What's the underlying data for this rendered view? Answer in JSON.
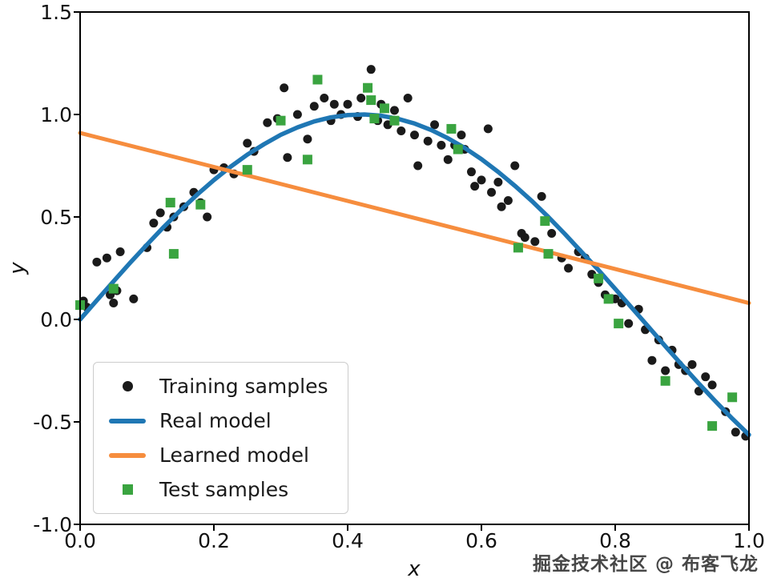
{
  "watermark": "掘金技术社区 @ 布客飞龙",
  "chart_data": {
    "type": "scatter",
    "title": "",
    "xlabel": "x",
    "ylabel": "y",
    "xlim": [
      0.0,
      1.0
    ],
    "ylim": [
      -1.0,
      1.5
    ],
    "grid": false,
    "legend_position": "lower left",
    "xticks": [
      0.0,
      0.2,
      0.4,
      0.6,
      0.8,
      1.0
    ],
    "xtick_labels": [
      "0.0",
      "0.2",
      "0.4",
      "0.6",
      "0.8",
      "1.0"
    ],
    "yticks": [
      -1.0,
      -0.5,
      0.0,
      0.5,
      1.0,
      1.5
    ],
    "ytick_labels": [
      "-1.0",
      "-0.5",
      "0.0",
      "0.5",
      "1.0",
      "1.5"
    ],
    "series": [
      {
        "name": "Training samples",
        "type": "scatter",
        "marker": "circle",
        "color": "#1a1a1a",
        "points": [
          [
            0.005,
            0.09
          ],
          [
            0.01,
            0.06
          ],
          [
            0.025,
            0.28
          ],
          [
            0.04,
            0.3
          ],
          [
            0.045,
            0.12
          ],
          [
            0.05,
            0.08
          ],
          [
            0.055,
            0.14
          ],
          [
            0.06,
            0.33
          ],
          [
            0.08,
            0.1
          ],
          [
            0.1,
            0.35
          ],
          [
            0.11,
            0.47
          ],
          [
            0.12,
            0.52
          ],
          [
            0.13,
            0.45
          ],
          [
            0.14,
            0.5
          ],
          [
            0.155,
            0.55
          ],
          [
            0.17,
            0.62
          ],
          [
            0.18,
            0.57
          ],
          [
            0.19,
            0.5
          ],
          [
            0.2,
            0.73
          ],
          [
            0.215,
            0.74
          ],
          [
            0.23,
            0.71
          ],
          [
            0.25,
            0.86
          ],
          [
            0.26,
            0.82
          ],
          [
            0.28,
            0.96
          ],
          [
            0.295,
            0.98
          ],
          [
            0.305,
            1.13
          ],
          [
            0.31,
            0.79
          ],
          [
            0.325,
            1.0
          ],
          [
            0.34,
            0.88
          ],
          [
            0.35,
            1.04
          ],
          [
            0.365,
            1.08
          ],
          [
            0.375,
            0.97
          ],
          [
            0.38,
            1.05
          ],
          [
            0.39,
            1.0
          ],
          [
            0.4,
            1.05
          ],
          [
            0.415,
            0.99
          ],
          [
            0.42,
            1.08
          ],
          [
            0.435,
            1.22
          ],
          [
            0.445,
            0.97
          ],
          [
            0.45,
            1.05
          ],
          [
            0.46,
            0.95
          ],
          [
            0.47,
            1.02
          ],
          [
            0.48,
            0.92
          ],
          [
            0.49,
            1.08
          ],
          [
            0.5,
            0.9
          ],
          [
            0.505,
            0.75
          ],
          [
            0.52,
            0.87
          ],
          [
            0.53,
            0.95
          ],
          [
            0.54,
            0.85
          ],
          [
            0.55,
            0.78
          ],
          [
            0.56,
            0.85
          ],
          [
            0.57,
            0.9
          ],
          [
            0.575,
            0.83
          ],
          [
            0.585,
            0.72
          ],
          [
            0.59,
            0.65
          ],
          [
            0.6,
            0.68
          ],
          [
            0.61,
            0.93
          ],
          [
            0.615,
            0.62
          ],
          [
            0.625,
            0.67
          ],
          [
            0.63,
            0.55
          ],
          [
            0.64,
            0.58
          ],
          [
            0.65,
            0.75
          ],
          [
            0.66,
            0.42
          ],
          [
            0.665,
            0.4
          ],
          [
            0.68,
            0.38
          ],
          [
            0.69,
            0.6
          ],
          [
            0.7,
            0.32
          ],
          [
            0.705,
            0.42
          ],
          [
            0.72,
            0.3
          ],
          [
            0.73,
            0.25
          ],
          [
            0.745,
            0.33
          ],
          [
            0.755,
            0.3
          ],
          [
            0.765,
            0.22
          ],
          [
            0.775,
            0.18
          ],
          [
            0.785,
            0.12
          ],
          [
            0.8,
            0.1
          ],
          [
            0.81,
            0.08
          ],
          [
            0.82,
            -0.02
          ],
          [
            0.835,
            0.05
          ],
          [
            0.845,
            -0.05
          ],
          [
            0.855,
            -0.2
          ],
          [
            0.865,
            -0.1
          ],
          [
            0.875,
            -0.25
          ],
          [
            0.885,
            -0.15
          ],
          [
            0.895,
            -0.22
          ],
          [
            0.905,
            -0.25
          ],
          [
            0.915,
            -0.22
          ],
          [
            0.925,
            -0.35
          ],
          [
            0.935,
            -0.28
          ],
          [
            0.945,
            -0.32
          ],
          [
            0.965,
            -0.45
          ],
          [
            0.98,
            -0.55
          ],
          [
            0.995,
            -0.57
          ]
        ]
      },
      {
        "name": "Real model",
        "type": "line",
        "color": "#1f77b4",
        "width": 5.5,
        "points": [
          [
            0,
            0
          ],
          [
            0.025,
            0.093
          ],
          [
            0.05,
            0.186
          ],
          [
            0.075,
            0.277
          ],
          [
            0.1,
            0.365
          ],
          [
            0.125,
            0.451
          ],
          [
            0.15,
            0.532
          ],
          [
            0.175,
            0.609
          ],
          [
            0.2,
            0.68
          ],
          [
            0.225,
            0.745
          ],
          [
            0.25,
            0.804
          ],
          [
            0.275,
            0.855
          ],
          [
            0.3,
            0.901
          ],
          [
            0.325,
            0.937
          ],
          [
            0.35,
            0.966
          ],
          [
            0.375,
            0.986
          ],
          [
            0.4,
            0.997
          ],
          [
            0.425,
            1.0
          ],
          [
            0.45,
            0.994
          ],
          [
            0.475,
            0.979
          ],
          [
            0.5,
            0.956
          ],
          [
            0.525,
            0.924
          ],
          [
            0.55,
            0.884
          ],
          [
            0.575,
            0.837
          ],
          [
            0.6,
            0.782
          ],
          [
            0.625,
            0.72
          ],
          [
            0.65,
            0.652
          ],
          [
            0.675,
            0.579
          ],
          [
            0.7,
            0.5
          ],
          [
            0.725,
            0.416
          ],
          [
            0.75,
            0.328
          ],
          [
            0.775,
            0.241
          ],
          [
            0.8,
            0.149
          ],
          [
            0.825,
            0.056
          ],
          [
            0.85,
            -0.037
          ],
          [
            0.875,
            -0.131
          ],
          [
            0.9,
            -0.223
          ],
          [
            0.925,
            -0.313
          ],
          [
            0.95,
            -0.4
          ],
          [
            0.975,
            -0.484
          ],
          [
            1,
            -0.563
          ]
        ]
      },
      {
        "name": "Learned model",
        "type": "line",
        "color": "#f68d3e",
        "width": 5,
        "points": [
          [
            0,
            0.91
          ],
          [
            1,
            0.08
          ]
        ]
      },
      {
        "name": "Test samples",
        "type": "scatter",
        "marker": "square",
        "color": "#3aa440",
        "points": [
          [
            0.0,
            0.07
          ],
          [
            0.05,
            0.15
          ],
          [
            0.135,
            0.57
          ],
          [
            0.14,
            0.32
          ],
          [
            0.18,
            0.56
          ],
          [
            0.25,
            0.73
          ],
          [
            0.3,
            0.97
          ],
          [
            0.34,
            0.78
          ],
          [
            0.355,
            1.17
          ],
          [
            0.43,
            1.13
          ],
          [
            0.435,
            1.07
          ],
          [
            0.44,
            0.98
          ],
          [
            0.455,
            1.03
          ],
          [
            0.47,
            0.97
          ],
          [
            0.555,
            0.93
          ],
          [
            0.565,
            0.83
          ],
          [
            0.655,
            0.35
          ],
          [
            0.695,
            0.48
          ],
          [
            0.7,
            0.32
          ],
          [
            0.775,
            0.2
          ],
          [
            0.79,
            0.1
          ],
          [
            0.805,
            -0.02
          ],
          [
            0.875,
            -0.3
          ],
          [
            0.945,
            -0.52
          ],
          [
            0.975,
            -0.38
          ]
        ]
      }
    ]
  }
}
